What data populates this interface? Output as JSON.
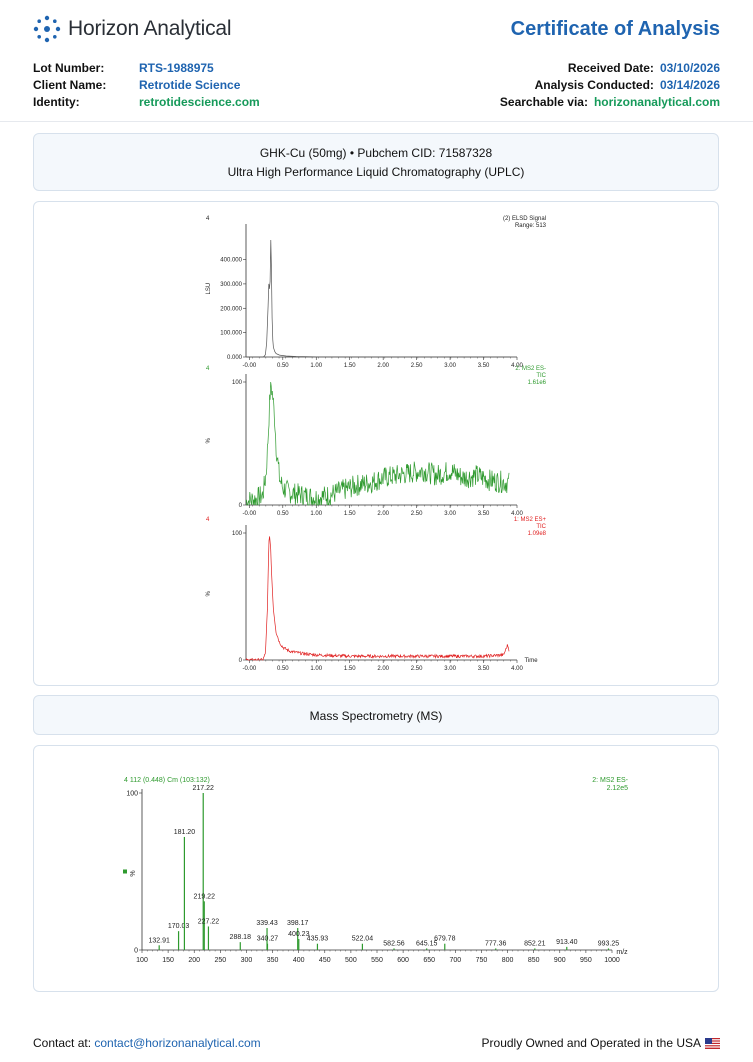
{
  "header": {
    "brand": "Horizon Analytical",
    "doc_title": "Certificate of Analysis",
    "lot_label": "Lot Number:",
    "lot_value": "RTS-1988975",
    "client_label": "Client Name:",
    "client_value": "Retrotide Science",
    "identity_label": "Identity:",
    "identity_value": "retrotidescience.com",
    "received_label": "Received Date:",
    "received_value": "03/10/2026",
    "conducted_label": "Analysis Conducted:",
    "conducted_value": "03/14/2026",
    "searchable_label": "Searchable via:",
    "searchable_value": "horizonanalytical.com"
  },
  "section1": {
    "line1": "GHK-Cu (50mg) • Pubchem CID: 71587328",
    "line2": "Ultra High Performance Liquid Chromatography (UPLC)"
  },
  "section2": {
    "title": "Mass Spectrometry (MS)"
  },
  "footer": {
    "contact_label": "Contact at:",
    "contact_email": "contact@horizonanalytical.com",
    "usa_text": "Proudly Owned and Operated in the USA"
  },
  "colors": {
    "accent_blue": "#1f64b0",
    "accent_green": "#169a5a",
    "elsd": "#555555",
    "ms_neg": "#2e9a2e",
    "ms_pos": "#e02020"
  },
  "chart_data": [
    {
      "type": "line",
      "panel": "elsd",
      "corner_label": "4",
      "legend": [
        "(2) ELSD Signal",
        "Range: 513"
      ],
      "ylabel": "LSU",
      "yticks": [
        "0.000",
        "100.000",
        "200.000",
        "300.000",
        "400.000"
      ],
      "xticks": [
        "-0.00",
        "0.50",
        "1.00",
        "1.50",
        "2.00",
        "2.50",
        "3.00",
        "3.50",
        "4.00"
      ],
      "xlim": [
        -0.05,
        4.0
      ],
      "ylim": [
        0,
        513
      ],
      "x": [
        -0.05,
        0.2,
        0.22,
        0.24,
        0.26,
        0.28,
        0.29,
        0.3,
        0.31,
        0.32,
        0.33,
        0.34,
        0.35,
        0.36,
        0.38,
        0.4,
        0.45,
        0.55,
        0.7,
        1.0,
        2.0,
        3.0,
        3.9
      ],
      "y": [
        0,
        0,
        2,
        10,
        60,
        210,
        300,
        280,
        310,
        480,
        370,
        160,
        70,
        40,
        22,
        14,
        8,
        4,
        2,
        1,
        0,
        0,
        0
      ]
    },
    {
      "type": "line",
      "panel": "ms_neg",
      "corner_label": "4",
      "legend": [
        "2: MS2 ES-",
        "TIC",
        "1.61e6"
      ],
      "ylabel": "%",
      "yticks": [
        "0",
        "100"
      ],
      "xticks": [
        "-0.00",
        "0.50",
        "1.00",
        "1.50",
        "2.00",
        "2.50",
        "3.00",
        "3.50",
        "4.00"
      ],
      "xlim": [
        -0.05,
        4.0
      ],
      "ylim": [
        0,
        100
      ],
      "x": [
        -0.05,
        0.1,
        0.2,
        0.25,
        0.28,
        0.3,
        0.32,
        0.35,
        0.38,
        0.4,
        0.45,
        0.5,
        0.6,
        0.8,
        1.0,
        1.2,
        1.4,
        1.6,
        1.8,
        2.0,
        2.2,
        2.4,
        2.6,
        2.8,
        3.0,
        3.2,
        3.4,
        3.6,
        3.88
      ],
      "y": [
        3,
        5,
        8,
        25,
        55,
        80,
        100,
        88,
        70,
        48,
        22,
        14,
        10,
        8,
        6,
        8,
        12,
        16,
        18,
        22,
        24,
        26,
        28,
        24,
        28,
        22,
        24,
        20,
        18
      ]
    },
    {
      "type": "line",
      "panel": "ms_pos",
      "corner_label": "4",
      "legend": [
        "1: MS2 ES+",
        "TIC",
        "1.09e8"
      ],
      "ylabel": "%",
      "xlabel_end": "Time",
      "yticks": [
        "0",
        "100"
      ],
      "xticks": [
        "-0.00",
        "0.50",
        "1.00",
        "1.50",
        "2.00",
        "2.50",
        "3.00",
        "3.50",
        "4.00"
      ],
      "xlim": [
        -0.05,
        4.0
      ],
      "ylim": [
        0,
        100
      ],
      "x": [
        -0.05,
        0.2,
        0.24,
        0.27,
        0.29,
        0.3,
        0.32,
        0.34,
        0.36,
        0.4,
        0.45,
        0.5,
        0.6,
        0.8,
        1.0,
        1.5,
        2.0,
        2.5,
        3.0,
        3.5,
        3.8,
        3.86,
        3.88
      ],
      "y": [
        0,
        0,
        5,
        40,
        90,
        100,
        85,
        60,
        40,
        22,
        14,
        10,
        7,
        5,
        4,
        3,
        3,
        3,
        3,
        3,
        4,
        12,
        8
      ]
    },
    {
      "type": "bar",
      "panel": "ms_spectrum",
      "scan_label": "4 112 (0.448) Cm (103:132)",
      "legend": [
        "2: MS2 ES-",
        "2.12e5"
      ],
      "ylabel": "%",
      "xlabel": "m/z",
      "yticks": [
        "0",
        "100"
      ],
      "xticks": [
        "100",
        "150",
        "200",
        "250",
        "300",
        "350",
        "400",
        "450",
        "500",
        "550",
        "600",
        "650",
        "700",
        "750",
        "800",
        "850",
        "900",
        "950",
        "1000"
      ],
      "xlim": [
        100,
        1000
      ],
      "ylim": [
        0,
        100
      ],
      "peaks": [
        {
          "mz": 132.91,
          "rel": 3,
          "label": "132.91"
        },
        {
          "mz": 170.03,
          "rel": 12,
          "label": "170.03"
        },
        {
          "mz": 181.2,
          "rel": 72,
          "label": "181.20"
        },
        {
          "mz": 217.22,
          "rel": 100,
          "label": "217.22"
        },
        {
          "mz": 219.22,
          "rel": 31,
          "label": "219.22"
        },
        {
          "mz": 227.22,
          "rel": 15,
          "label": "227.22"
        },
        {
          "mz": 288.18,
          "rel": 5,
          "label": "288.18"
        },
        {
          "mz": 339.43,
          "rel": 14,
          "label": "339.43"
        },
        {
          "mz": 340.27,
          "rel": 4,
          "label": "340.27"
        },
        {
          "mz": 398.17,
          "rel": 14,
          "label": "398.17"
        },
        {
          "mz": 400.23,
          "rel": 7,
          "label": "400.23"
        },
        {
          "mz": 435.93,
          "rel": 4,
          "label": "435.93"
        },
        {
          "mz": 522.04,
          "rel": 4,
          "label": "522.04"
        },
        {
          "mz": 582.56,
          "rel": 1,
          "label": "582.56"
        },
        {
          "mz": 645.15,
          "rel": 1,
          "label": "645.15"
        },
        {
          "mz": 679.78,
          "rel": 4,
          "label": "679.78"
        },
        {
          "mz": 777.36,
          "rel": 1,
          "label": "777.36"
        },
        {
          "mz": 852.21,
          "rel": 1,
          "label": "852.21"
        },
        {
          "mz": 913.4,
          "rel": 2,
          "label": "913.40"
        },
        {
          "mz": 993.25,
          "rel": 1,
          "label": "993.25"
        }
      ]
    }
  ]
}
